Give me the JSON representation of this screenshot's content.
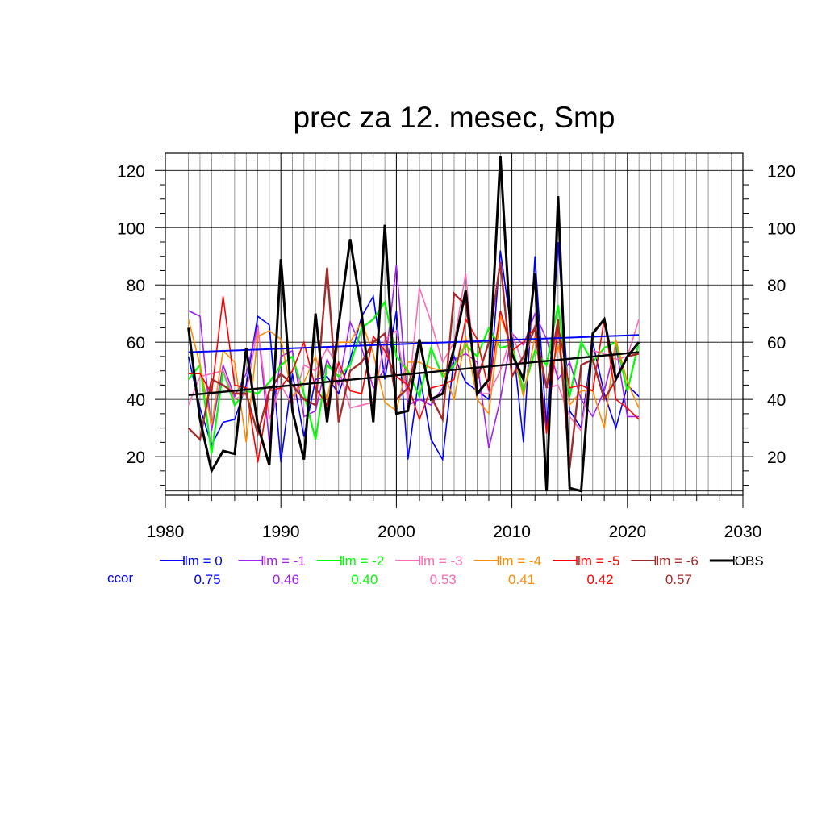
{
  "chart_data": {
    "type": "line",
    "title": "prec za 12. mesec, Smp",
    "xlabel": "",
    "ylabel": "",
    "xlim": [
      1980,
      2030
    ],
    "ylim": [
      6.5,
      126
    ],
    "xticks": [
      1980,
      1990,
      2000,
      2010,
      2020,
      2030
    ],
    "yticks": [
      20,
      40,
      60,
      80,
      100,
      120
    ],
    "grid": true,
    "ccor_label": "ccor",
    "x": [
      1982,
      1983,
      1984,
      1985,
      1986,
      1987,
      1988,
      1989,
      1990,
      1991,
      1992,
      1993,
      1994,
      1995,
      1996,
      1997,
      1998,
      1999,
      2000,
      2001,
      2002,
      2003,
      2004,
      2005,
      2006,
      2007,
      2008,
      2009,
      2010,
      2011,
      2012,
      2013,
      2014,
      2015,
      2016,
      2017,
      2018,
      2019,
      2020,
      2021
    ],
    "series": [
      {
        "name": "lm = 0",
        "color": "#0000ff",
        "width": 1.6,
        "ccor": "0.75",
        "values": [
          55,
          37,
          24,
          32,
          33,
          45,
          69,
          66,
          18,
          49,
          27,
          47,
          48,
          42,
          54,
          69,
          76,
          47,
          71,
          19,
          49,
          26,
          19,
          55,
          46,
          43,
          40,
          92,
          63,
          25,
          90,
          30,
          95,
          36,
          30,
          60,
          42,
          30,
          45,
          41
        ],
        "trend": [
          56.5,
          62.5
        ]
      },
      {
        "name": "lm = -1",
        "color": "#a020f0",
        "width": 1.6,
        "ccor": "0.46",
        "values": [
          71,
          69,
          29,
          52,
          41,
          49,
          66,
          25,
          55,
          57,
          34,
          36,
          54,
          45,
          67,
          58,
          44,
          51,
          87,
          38,
          40,
          38,
          44,
          54,
          56,
          53,
          23,
          40,
          63,
          59,
          70,
          61,
          47,
          53,
          40,
          34,
          43,
          59,
          34,
          34
        ]
      },
      {
        "name": "lm = -2",
        "color": "#00ff00",
        "width": 2.2,
        "ccor": "0.40",
        "values": [
          47,
          52,
          21,
          50,
          38,
          43,
          42,
          46,
          52,
          55,
          42,
          26,
          52,
          48,
          52,
          65,
          68,
          74,
          55,
          50,
          41,
          58,
          48,
          52,
          59,
          55,
          65,
          58,
          59,
          43,
          57,
          52,
          73,
          41,
          60,
          53,
          58,
          60,
          43,
          60
        ]
      },
      {
        "name": "lm = -3",
        "color": "#ff69b4",
        "width": 1.6,
        "ccor": "0.53",
        "values": [
          38,
          48,
          49,
          50,
          40,
          42,
          65,
          33,
          45,
          38,
          52,
          50,
          58,
          51,
          37,
          38,
          39,
          61,
          64,
          40,
          79,
          67,
          53,
          60,
          84,
          42,
          42,
          50,
          63,
          52,
          66,
          44,
          45,
          34,
          29,
          57,
          56,
          54,
          55,
          68
        ]
      },
      {
        "name": "lm = -4",
        "color": "#ff8c00",
        "width": 1.6,
        "ccor": "0.41",
        "values": [
          68,
          52,
          31,
          57,
          53,
          25,
          62,
          64,
          61,
          41,
          46,
          55,
          40,
          60,
          60,
          67,
          56,
          39,
          36,
          53,
          53,
          51,
          50,
          40,
          62,
          40,
          35,
          69,
          58,
          41,
          62,
          44,
          59,
          38,
          43,
          43,
          30,
          61,
          46,
          37
        ]
      },
      {
        "name": "lm = -5",
        "color": "#ff0000",
        "width": 1.6,
        "ccor": "0.42",
        "values": [
          49,
          49,
          42,
          76,
          45,
          44,
          18,
          43,
          44,
          50,
          60,
          44,
          38,
          53,
          43,
          42,
          62,
          57,
          48,
          45,
          33,
          44,
          45,
          47,
          68,
          61,
          43,
          71,
          57,
          60,
          65,
          28,
          66,
          44,
          45,
          43,
          68,
          40,
          37,
          33
        ]
      },
      {
        "name": "lm = -6",
        "color": "#a52a2a",
        "width": 2.4,
        "ccor": "0.57",
        "values": [
          30,
          26,
          47,
          45,
          42,
          42,
          28,
          43,
          49,
          45,
          40,
          38,
          86,
          32,
          50,
          53,
          60,
          63,
          40,
          44,
          60,
          41,
          33,
          77,
          73,
          47,
          60,
          88,
          48,
          55,
          65,
          44,
          68,
          16,
          52,
          54,
          40,
          47,
          55,
          56
        ]
      }
    ],
    "obs": {
      "name": "OBS",
      "color": "#000000",
      "width": 3,
      "values": [
        65,
        33,
        15,
        22,
        21,
        58,
        31,
        17,
        89,
        36,
        19,
        70,
        32,
        66,
        96,
        70,
        32,
        101,
        35,
        36,
        61,
        40,
        42,
        58,
        78,
        42,
        47,
        125,
        56,
        47,
        84,
        8,
        111,
        9,
        8,
        63,
        68,
        47,
        55,
        60
      ],
      "trend": [
        41.5,
        56.5
      ]
    }
  }
}
